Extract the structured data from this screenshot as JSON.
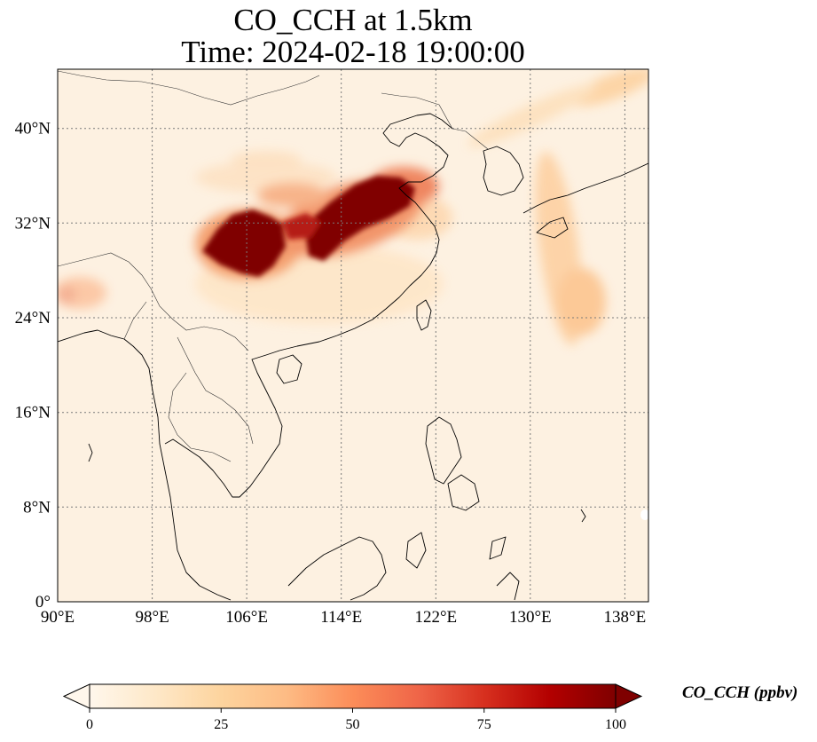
{
  "title": {
    "line1": "CO_CCH at 1.5km",
    "line2": "Time: 2024-02-18 19:00:00"
  },
  "map": {
    "variable": "CO_CCH",
    "level": "1.5km",
    "projection": "PlateCarree",
    "lon_range": [
      90,
      140
    ],
    "lat_range": [
      0,
      45
    ],
    "gridlines": true,
    "x_ticks": [
      "90°E",
      "98°E",
      "106°E",
      "114°E",
      "122°E",
      "130°E",
      "138°E"
    ],
    "y_ticks": [
      "0°",
      "8°N",
      "16°N",
      "24°N",
      "32°N",
      "40°N"
    ],
    "colormap": "OrRd",
    "colormap_colors": [
      "#fff7ec",
      "#fee8c8",
      "#fdd49e",
      "#fdbb84",
      "#fc8d59",
      "#ef6548",
      "#d7301f",
      "#b30000",
      "#7f0000"
    ]
  },
  "colorbar": {
    "label": "CO_CCH (ppbv)",
    "range": [
      0,
      100
    ],
    "ticks": [
      "0",
      "25",
      "50",
      "75",
      "100"
    ],
    "extend": "both"
  }
}
